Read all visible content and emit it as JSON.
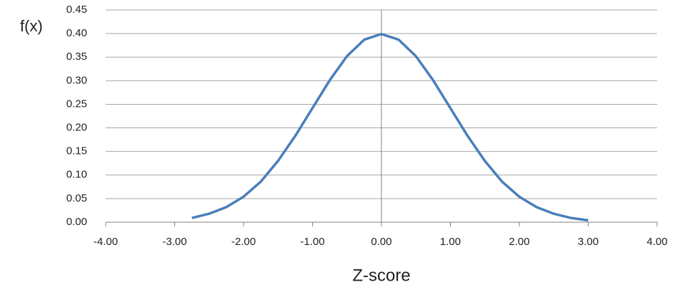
{
  "chart_data": {
    "type": "line",
    "xlabel": "Z-score",
    "ylabel": "f(x)",
    "x": [
      -2.75,
      -2.5,
      -2.25,
      -2.0,
      -1.75,
      -1.5,
      -1.25,
      -1.0,
      -0.75,
      -0.5,
      -0.25,
      0,
      0.25,
      0.5,
      0.75,
      1.0,
      1.25,
      1.5,
      1.75,
      2.0,
      2.25,
      2.5,
      2.75,
      3.0
    ],
    "values": [
      0.009,
      0.018,
      0.032,
      0.054,
      0.086,
      0.13,
      0.183,
      0.242,
      0.301,
      0.352,
      0.387,
      0.399,
      0.387,
      0.352,
      0.301,
      0.242,
      0.183,
      0.13,
      0.086,
      0.054,
      0.032,
      0.018,
      0.009,
      0.004
    ],
    "color": "#4a7ebb",
    "xlim": [
      -4,
      4
    ],
    "xticks": [
      {
        "value": -4,
        "label": "-4.00"
      },
      {
        "value": -3,
        "label": "-3.00"
      },
      {
        "value": -2,
        "label": "-2.00"
      },
      {
        "value": -1,
        "label": "-1.00"
      },
      {
        "value": 0,
        "label": "0.00"
      },
      {
        "value": 1,
        "label": "1.00"
      },
      {
        "value": 2,
        "label": "2.00"
      },
      {
        "value": 3,
        "label": "3.00"
      },
      {
        "value": 4,
        "label": "4.00"
      }
    ],
    "ylim": [
      0,
      0.45
    ],
    "yticks": [
      {
        "value": 0,
        "label": "0.00"
      },
      {
        "value": 0.05,
        "label": "0.05"
      },
      {
        "value": 0.1,
        "label": "0.10"
      },
      {
        "value": 0.15,
        "label": "0.15"
      },
      {
        "value": 0.2,
        "label": "0.20"
      },
      {
        "value": 0.25,
        "label": "0.25"
      },
      {
        "value": 0.3,
        "label": "0.30"
      },
      {
        "value": 0.35,
        "label": "0.35"
      },
      {
        "value": 0.4,
        "label": "0.40"
      },
      {
        "value": 0.45,
        "label": "0.45"
      }
    ],
    "grid": true
  }
}
